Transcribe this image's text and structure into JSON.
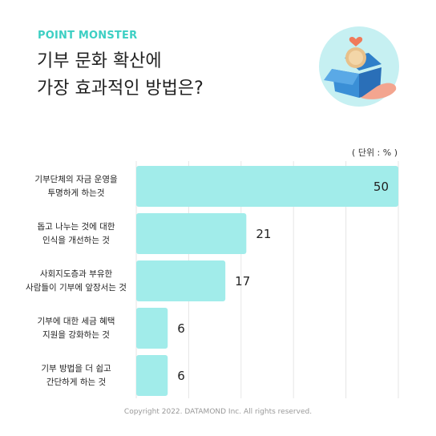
{
  "brand": "POINT MONSTER",
  "footer": "Copyright 2022. DATAMOND Inc. All rights reserved.",
  "chart_data": {
    "type": "bar",
    "orientation": "horizontal",
    "title": "기부 문화 확산에\n가장 효과적인 방법은?",
    "unit": "( 단위 : % )",
    "categories": [
      "기부단체의 자금 운영을\n투명하게 하는것",
      "돕고 나누는 것에 대한\n인식을 개선하는 것",
      "사회지도층과 부유한\n사람들이 기부에 앞장서는 것",
      "기부에 대한 세금 혜택\n지원을 강화하는 것",
      "기부 방법을 더 쉽고\n간단하게 하는 것"
    ],
    "values": [
      50,
      21,
      17,
      6,
      6
    ],
    "color": "#a1ecea",
    "xlim": [
      0,
      50
    ],
    "xticks": [
      0,
      10,
      20,
      30,
      40,
      50
    ],
    "grid": true
  }
}
